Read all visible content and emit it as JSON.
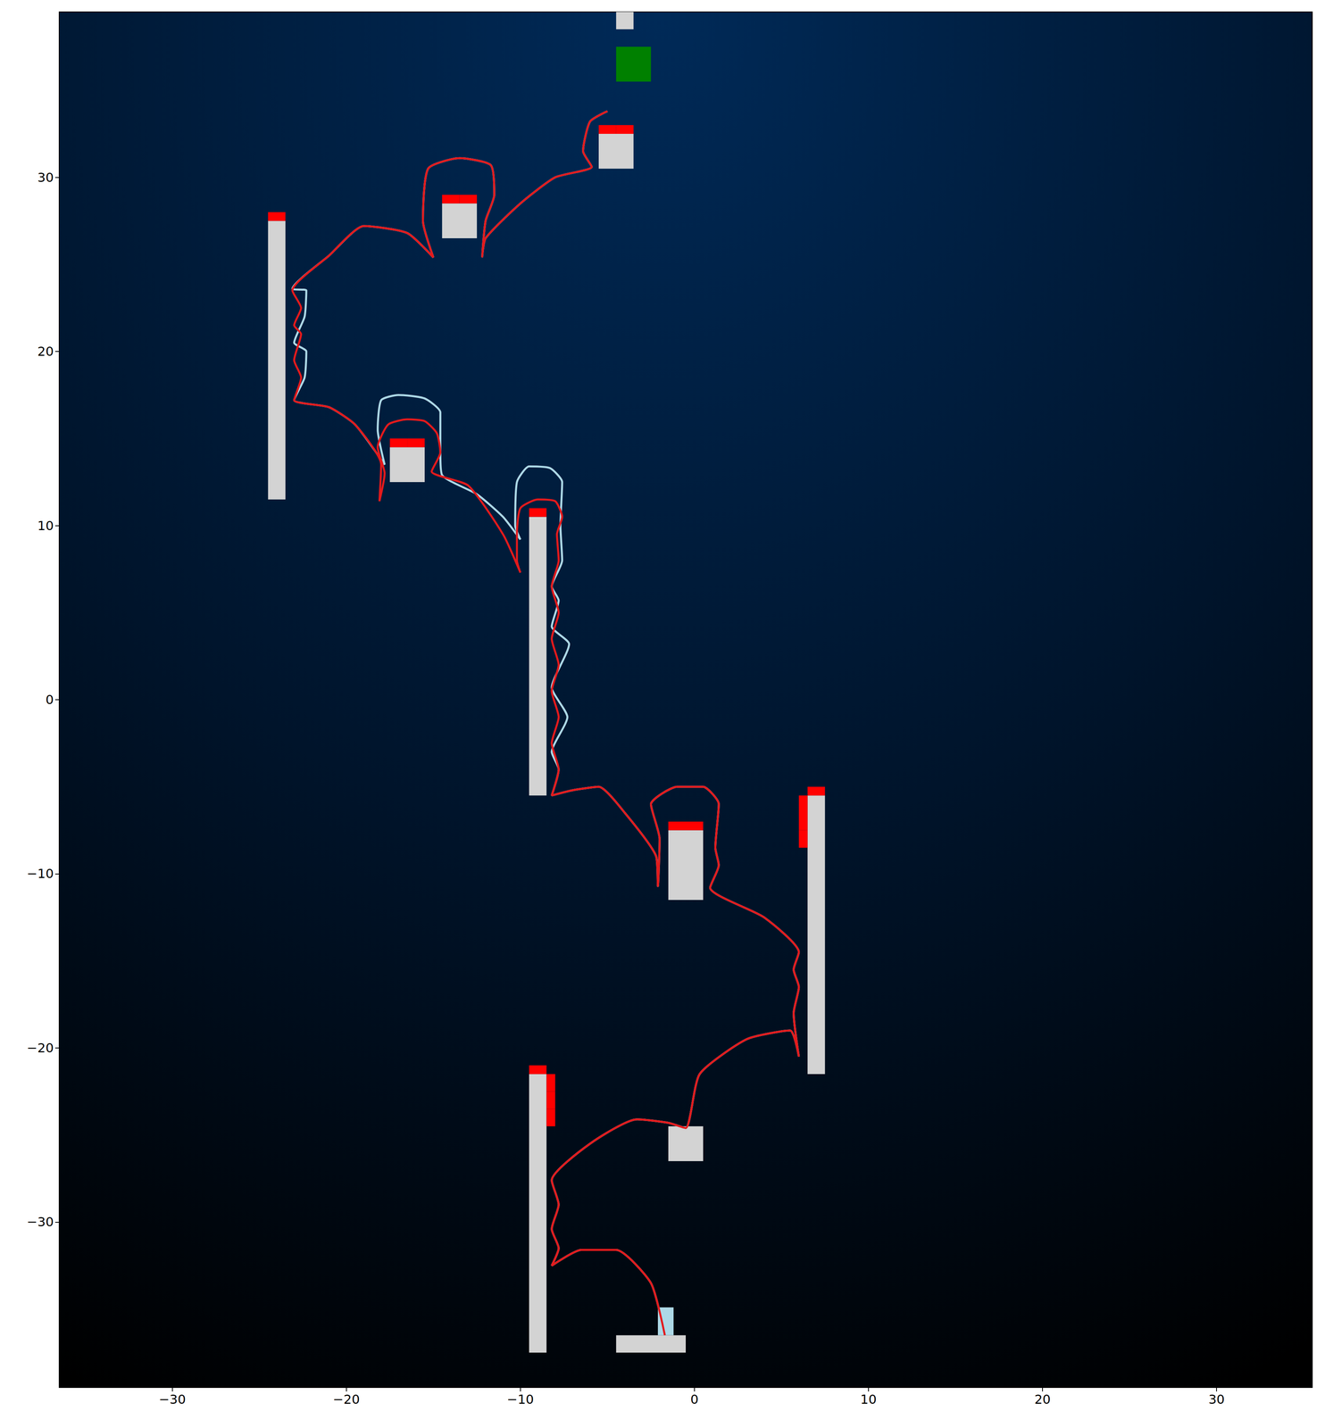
{
  "chart_data": {
    "type": "line",
    "xlim": [
      -36.5,
      35.5
    ],
    "ylim": [
      -39.5,
      39.5
    ],
    "xticks": [
      {
        "value": -30,
        "label": "−30"
      },
      {
        "value": -20,
        "label": "−20"
      },
      {
        "value": -10,
        "label": "−10"
      },
      0,
      10,
      20,
      30
    ],
    "yticks": [
      {
        "value": -30,
        "label": "−30"
      },
      {
        "value": -20,
        "label": "−20"
      },
      {
        "value": -10,
        "label": "−10"
      },
      0,
      10,
      20,
      30
    ],
    "grid": false,
    "series": [
      {
        "type": "rect",
        "color": "#d3d3d3",
        "values": [
          [
            -4.5,
            -3.5,
            38.5,
            39.5
          ],
          [
            -5.5,
            -3.5,
            30.5,
            32.5
          ],
          [
            -14.5,
            -12.5,
            26.5,
            28.5
          ],
          [
            -24.5,
            -23.5,
            11.5,
            27.5
          ],
          [
            -17.5,
            -15.5,
            12.5,
            14.5
          ],
          [
            -9.5,
            -8.5,
            -5.5,
            10.5
          ],
          [
            -1.5,
            0.5,
            -11.5,
            -7.5
          ],
          [
            6.5,
            7.5,
            -21.5,
            -5.5
          ],
          [
            -1.5,
            0.5,
            -26.5,
            -24.5
          ],
          [
            -9.5,
            -8.5,
            -37.5,
            -21.5
          ],
          [
            -4.5,
            -0.5,
            -37.5,
            -36.5
          ]
        ]
      },
      {
        "type": "rect",
        "color": "#008000",
        "values": [
          [
            -4.5,
            -2.5,
            35.5,
            37.5
          ]
        ]
      },
      {
        "type": "rect",
        "color": "#add8e6",
        "values": [
          [
            -2.1,
            -1.2,
            -36.5,
            -34.9
          ]
        ]
      },
      {
        "type": "line",
        "color": "#add8e6",
        "values": [
          [
            -1.7,
            -36.5
          ],
          [
            -2.5,
            -33.5
          ],
          [
            -4.5,
            -31.6
          ],
          [
            -6.5,
            -31.6
          ],
          [
            -8.2,
            -32.5
          ],
          [
            -7.8,
            -31.5
          ],
          [
            -8.2,
            -30.4
          ],
          [
            -7.8,
            -29
          ],
          [
            -8.2,
            -27.6
          ],
          [
            -6,
            -25.5
          ],
          [
            -3.3,
            -24.1
          ],
          [
            -1.5,
            -24.3
          ],
          [
            -0.5,
            -24.6
          ],
          [
            0.3,
            -21.5
          ],
          [
            3,
            -19.5
          ],
          [
            5.5,
            -19
          ],
          [
            6,
            -20.5
          ],
          [
            5.7,
            -18
          ],
          [
            6,
            -16.5
          ],
          [
            5.7,
            -15.5
          ],
          [
            6,
            -14.5
          ],
          [
            4,
            -12.5
          ],
          [
            0.9,
            -10.8
          ],
          [
            1.4,
            -9.5
          ],
          [
            1.2,
            -8.5
          ],
          [
            1.4,
            -6
          ],
          [
            0.5,
            -5
          ],
          [
            -1,
            -5
          ],
          [
            -2.5,
            -6
          ],
          [
            -2,
            -8
          ],
          [
            -2.1,
            -10.7
          ],
          [
            -2.2,
            -9
          ],
          [
            -4,
            -6.5
          ],
          [
            -5.5,
            -5
          ],
          [
            -7,
            -5.2
          ],
          [
            -8.2,
            -5.5
          ],
          [
            -7.8,
            -4
          ],
          [
            -8.2,
            -3
          ],
          [
            -7.3,
            -1
          ],
          [
            -8.2,
            0.7
          ],
          [
            -7.2,
            3.2
          ],
          [
            -8.2,
            4.2
          ],
          [
            -7.8,
            5.7
          ],
          [
            -8.2,
            6.5
          ],
          [
            -7.6,
            8
          ],
          [
            -7.7,
            10
          ],
          [
            -7.6,
            12.5
          ],
          [
            -8.3,
            13.3
          ],
          [
            -9.5,
            13.4
          ],
          [
            -10.2,
            12.5
          ],
          [
            -10.3,
            10
          ],
          [
            -10,
            9.2
          ],
          [
            -11,
            10.5
          ],
          [
            -12.5,
            11.8
          ],
          [
            -14.5,
            12.9
          ],
          [
            -14.6,
            14.2
          ],
          [
            -14.6,
            16.5
          ],
          [
            -15.5,
            17.3
          ],
          [
            -17,
            17.5
          ],
          [
            -18,
            17.2
          ],
          [
            -18.2,
            15.5
          ],
          [
            -17.8,
            13.5
          ],
          [
            -19.5,
            15.8
          ],
          [
            -21,
            16.8
          ],
          [
            -23,
            17.2
          ],
          [
            -22.4,
            18.5
          ],
          [
            -22.3,
            20
          ],
          [
            -23,
            20.5
          ],
          [
            -22.4,
            22
          ],
          [
            -22.3,
            23.5
          ],
          [
            -23.1,
            23.6
          ],
          [
            -21,
            25.5
          ],
          [
            -19,
            27.2
          ],
          [
            -16.5,
            26.8
          ],
          [
            -15,
            25.4
          ],
          [
            -15.6,
            27.5
          ],
          [
            -15.3,
            30.5
          ],
          [
            -13.5,
            31.1
          ],
          [
            -11.7,
            30.7
          ],
          [
            -11.5,
            29
          ],
          [
            -12,
            27.5
          ],
          [
            -12.2,
            25.4
          ],
          [
            -12,
            26.5
          ],
          [
            -10,
            28.5
          ],
          [
            -8,
            30
          ],
          [
            -5.9,
            30.6
          ],
          [
            -6.4,
            31.5
          ],
          [
            -6,
            33.2
          ],
          [
            -5,
            33.8
          ]
        ]
      },
      {
        "type": "line",
        "color": "#e31a1c",
        "values": [
          [
            -1.7,
            -36.5
          ],
          [
            -2.5,
            -33.5
          ],
          [
            -4.5,
            -31.6
          ],
          [
            -6.5,
            -31.6
          ],
          [
            -8.2,
            -32.5
          ],
          [
            -7.8,
            -31.5
          ],
          [
            -8.2,
            -30.4
          ],
          [
            -7.8,
            -29
          ],
          [
            -8.2,
            -27.6
          ],
          [
            -6,
            -25.5
          ],
          [
            -3.3,
            -24.1
          ],
          [
            -1.5,
            -24.3
          ],
          [
            -0.5,
            -24.6
          ],
          [
            0.3,
            -21.5
          ],
          [
            3,
            -19.5
          ],
          [
            5.5,
            -19
          ],
          [
            6,
            -20.5
          ],
          [
            5.7,
            -18
          ],
          [
            6,
            -16.5
          ],
          [
            5.7,
            -15.5
          ],
          [
            6,
            -14.5
          ],
          [
            4,
            -12.5
          ],
          [
            0.9,
            -10.8
          ],
          [
            1.4,
            -9.5
          ],
          [
            1.2,
            -8.5
          ],
          [
            1.4,
            -6
          ],
          [
            0.5,
            -5
          ],
          [
            -1,
            -5
          ],
          [
            -2.5,
            -6
          ],
          [
            -2,
            -8
          ],
          [
            -2.1,
            -10.7
          ],
          [
            -2.2,
            -9
          ],
          [
            -4,
            -6.5
          ],
          [
            -5.5,
            -5
          ],
          [
            -7,
            -5.2
          ],
          [
            -8.2,
            -5.5
          ],
          [
            -7.8,
            -4
          ],
          [
            -8.2,
            -2.5
          ],
          [
            -7.8,
            -1
          ],
          [
            -8.2,
            0.5
          ],
          [
            -7.8,
            2
          ],
          [
            -8.2,
            3.5
          ],
          [
            -7.8,
            5
          ],
          [
            -8.2,
            6.5
          ],
          [
            -7.8,
            8
          ],
          [
            -7.9,
            9.5
          ],
          [
            -7.6,
            10.5
          ],
          [
            -8,
            11.4
          ],
          [
            -9,
            11.5
          ],
          [
            -10,
            11
          ],
          [
            -10.2,
            9.5
          ],
          [
            -10.2,
            8
          ],
          [
            -10,
            7.3
          ],
          [
            -11,
            9.5
          ],
          [
            -13,
            12.3
          ],
          [
            -15.1,
            13.1
          ],
          [
            -14.6,
            14.2
          ],
          [
            -14.8,
            15.3
          ],
          [
            -15.5,
            16
          ],
          [
            -16.5,
            16.1
          ],
          [
            -17.6,
            15.8
          ],
          [
            -18.2,
            14.5
          ],
          [
            -17.8,
            13
          ],
          [
            -18.1,
            11.4
          ],
          [
            -18,
            13.5
          ],
          [
            -19.5,
            15.8
          ],
          [
            -21,
            16.8
          ],
          [
            -23,
            17.2
          ],
          [
            -22.6,
            18.5
          ],
          [
            -23,
            19.5
          ],
          [
            -22.6,
            21
          ],
          [
            -23,
            21.5
          ],
          [
            -22.6,
            22.5
          ],
          [
            -23.1,
            23.5
          ],
          [
            -21,
            25.5
          ],
          [
            -19,
            27.2
          ],
          [
            -16.5,
            26.8
          ],
          [
            -15,
            25.4
          ],
          [
            -15.6,
            27.5
          ],
          [
            -15.3,
            30.5
          ],
          [
            -13.5,
            31.1
          ],
          [
            -11.7,
            30.7
          ],
          [
            -11.5,
            29
          ],
          [
            -12,
            27.5
          ],
          [
            -12.2,
            25.4
          ],
          [
            -12,
            26.5
          ],
          [
            -10,
            28.5
          ],
          [
            -8,
            30
          ],
          [
            -5.9,
            30.6
          ],
          [
            -6.4,
            31.5
          ],
          [
            -6,
            33.2
          ],
          [
            -5,
            33.8
          ]
        ]
      },
      {
        "type": "rect",
        "color": "#ff0000",
        "values": [
          [
            -5.5,
            -4.5,
            32.5,
            33
          ],
          [
            -4.5,
            -3.5,
            32.5,
            33
          ],
          [
            -14.5,
            -13.5,
            28.5,
            29
          ],
          [
            -13.5,
            -12.5,
            28.5,
            29
          ],
          [
            -24.5,
            -23.5,
            27.5,
            28
          ],
          [
            -17.5,
            -16.5,
            14.5,
            15
          ],
          [
            -16.5,
            -15.5,
            14.5,
            15
          ],
          [
            -9.5,
            -8.5,
            10.5,
            11
          ],
          [
            -1.5,
            -0.5,
            -7.5,
            -7
          ],
          [
            -0.5,
            0.5,
            -7.5,
            -7
          ],
          [
            6.5,
            7.5,
            -5.5,
            -5
          ],
          [
            6,
            6.5,
            -6.5,
            -5.5
          ],
          [
            6,
            6.5,
            -7.5,
            -6.5
          ],
          [
            6,
            6.5,
            -8.5,
            -7.5
          ],
          [
            -9.5,
            -8.5,
            -21.5,
            -21
          ],
          [
            -8.5,
            -8,
            -22.5,
            -21.5
          ],
          [
            -8.5,
            -8,
            -23.5,
            -22.5
          ],
          [
            -8.5,
            -8,
            -24.5,
            -23.5
          ]
        ]
      }
    ]
  }
}
